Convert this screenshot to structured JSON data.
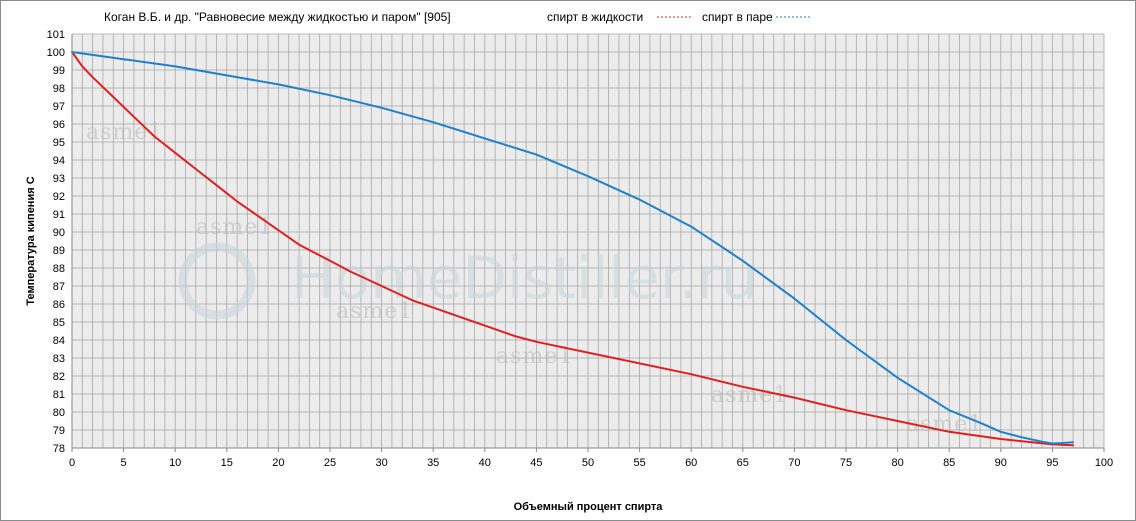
{
  "chart_data": {
    "type": "line",
    "title": "Коган В.Б. и др. \"Равновесие между жидкостью и паром\" [905]",
    "xlabel": "Объемный процент спирта",
    "ylabel": "Температура кипения С",
    "xlim": [
      0,
      100
    ],
    "ylim": [
      78,
      101
    ],
    "x_ticks": [
      0,
      5,
      10,
      15,
      20,
      25,
      30,
      35,
      40,
      45,
      50,
      55,
      60,
      65,
      70,
      75,
      80,
      85,
      90,
      95,
      100
    ],
    "y_ticks": [
      78,
      79,
      80,
      81,
      82,
      83,
      84,
      85,
      86,
      87,
      88,
      89,
      90,
      91,
      92,
      93,
      94,
      95,
      96,
      97,
      98,
      99,
      100,
      101
    ],
    "grid": true,
    "legend_position": "top",
    "series": [
      {
        "name": "спирт в жидкости",
        "color": "#e02020",
        "points": [
          [
            0,
            100.0
          ],
          [
            1,
            99.2
          ],
          [
            2,
            98.6
          ],
          [
            4,
            97.5
          ],
          [
            6,
            96.4
          ],
          [
            8,
            95.3
          ],
          [
            10,
            94.4
          ],
          [
            12,
            93.5
          ],
          [
            14,
            92.6
          ],
          [
            16,
            91.7
          ],
          [
            18,
            90.9
          ],
          [
            20,
            90.1
          ],
          [
            22,
            89.3
          ],
          [
            25,
            88.4
          ],
          [
            27,
            87.8
          ],
          [
            30,
            87.0
          ],
          [
            33,
            86.2
          ],
          [
            35,
            85.8
          ],
          [
            38,
            85.2
          ],
          [
            40,
            84.8
          ],
          [
            43,
            84.2
          ],
          [
            45,
            83.9
          ],
          [
            50,
            83.3
          ],
          [
            55,
            82.7
          ],
          [
            60,
            82.1
          ],
          [
            65,
            81.4
          ],
          [
            70,
            80.8
          ],
          [
            75,
            80.1
          ],
          [
            80,
            79.5
          ],
          [
            85,
            78.9
          ],
          [
            90,
            78.5
          ],
          [
            95,
            78.2
          ],
          [
            97.0,
            78.15
          ]
        ]
      },
      {
        "name": "спирт в паре",
        "color": "#2080c8",
        "points": [
          [
            0,
            100.0
          ],
          [
            5,
            99.6
          ],
          [
            10,
            99.2
          ],
          [
            15,
            98.7
          ],
          [
            20,
            98.2
          ],
          [
            25,
            97.6
          ],
          [
            30,
            96.9
          ],
          [
            35,
            96.1
          ],
          [
            40,
            95.2
          ],
          [
            45,
            94.3
          ],
          [
            50,
            93.1
          ],
          [
            55,
            91.8
          ],
          [
            60,
            90.3
          ],
          [
            65,
            88.4
          ],
          [
            70,
            86.3
          ],
          [
            75,
            84.0
          ],
          [
            80,
            81.9
          ],
          [
            85,
            80.1
          ],
          [
            88,
            79.4
          ],
          [
            90,
            78.9
          ],
          [
            92,
            78.6
          ],
          [
            94,
            78.35
          ],
          [
            95,
            78.25
          ],
          [
            96,
            78.28
          ],
          [
            97.0,
            78.32
          ]
        ]
      }
    ],
    "watermarks": [
      "HomeDistiller.ru",
      "asme1"
    ]
  }
}
